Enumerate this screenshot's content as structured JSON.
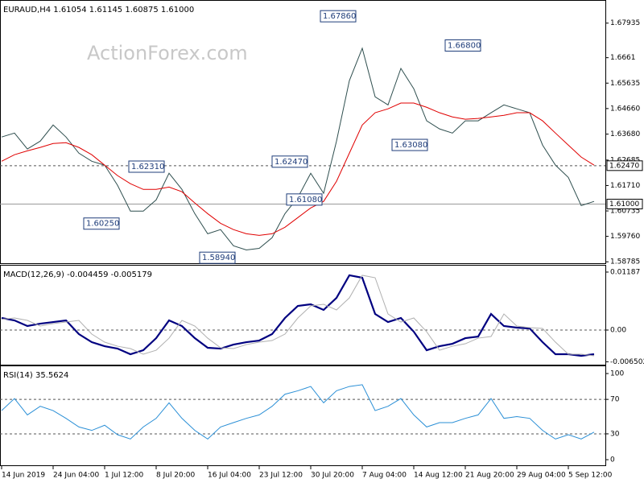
{
  "chart_data": [
    {
      "type": "line",
      "title": "EURAUD,H4  1.61054 1.61145 1.60875 1.61000",
      "watermark": "ActionForex.com",
      "categories": [
        "14 Jun 2019",
        null,
        null,
        null,
        "24 Jun 04:00",
        null,
        null,
        null,
        "1 Jul 12:00",
        null,
        null,
        null,
        "8 Jul 20:00",
        null,
        null,
        null,
        "16 Jul 04:00",
        null,
        null,
        null,
        "23 Jul 12:00",
        null,
        null,
        null,
        "30 Jul 20:00",
        null,
        null,
        null,
        "7 Aug 04:00",
        null,
        null,
        null,
        "14 Aug 12:00",
        null,
        null,
        null,
        "21 Aug 20:00",
        null,
        null,
        null,
        "29 Aug 04:00",
        null,
        null,
        null,
        "5 Sep 12:00",
        null,
        null
      ],
      "series": [
        {
          "color": "#2f4f4f",
          "values": [
            1.6357,
            1.6372,
            1.6311,
            1.6341,
            1.6403,
            1.6357,
            1.6295,
            1.6264,
            1.6249,
            1.6172,
            1.6073,
            1.6073,
            1.6116,
            1.6218,
            1.6156,
            1.6063,
            1.5986,
            1.6002,
            1.594,
            1.5924,
            1.593,
            1.5971,
            1.6063,
            1.6125,
            1.6218,
            1.6141,
            1.6341,
            1.6573,
            1.6697,
            1.6511,
            1.648,
            1.662,
            1.6542,
            1.6419,
            1.6388,
            1.6372,
            1.6419,
            1.6419,
            1.645,
            1.648,
            1.6465,
            1.645,
            1.6326,
            1.6249,
            1.6202,
            1.6094,
            1.611
          ]
        },
        {
          "color": "#e00000",
          "values": [
            1.6264,
            1.6289,
            1.6304,
            1.6317,
            1.6332,
            1.6335,
            1.6317,
            1.6289,
            1.6249,
            1.6209,
            1.6178,
            1.6156,
            1.6156,
            1.6165,
            1.6147,
            1.6104,
            1.6063,
            1.6026,
            1.6002,
            1.5986,
            1.598,
            1.5986,
            1.6011,
            1.6048,
            1.6085,
            1.611,
            1.6187,
            1.6295,
            1.6403,
            1.645,
            1.6465,
            1.6487,
            1.6487,
            1.6471,
            1.645,
            1.6434,
            1.6425,
            1.6428,
            1.6434,
            1.644,
            1.645,
            1.645,
            1.6419,
            1.6372,
            1.6326,
            1.628,
            1.6249
          ]
        }
      ],
      "ylim": [
        1.5873,
        1.6876
      ],
      "yticks": [
        1.67935,
        1.6661,
        1.65635,
        {
          "value": 1.6466,
          "label": "1.64660"
        },
        {
          "value": 1.6368,
          "label": "1.63680"
        },
        1.62685,
        {
          "value": 1.6171,
          "label": "1.61710"
        },
        1.60735,
        {
          "value": 1.5976,
          "label": "1.59760"
        },
        1.58785
      ],
      "levels": [
        {
          "value": 1.6247,
          "label": "1.62470",
          "style": "dashed"
        },
        {
          "value": 1.61,
          "label": "1.61000",
          "style": "solid"
        }
      ],
      "annotations": [
        {
          "value": 1.6786,
          "label": "1.67860"
        },
        {
          "value": 1.668,
          "label": "1.66800"
        },
        {
          "value": 1.6231,
          "label": "1.62310"
        },
        {
          "value": 1.6247,
          "label": "1.62470"
        },
        {
          "value": 1.6108,
          "label": "1.61080"
        },
        {
          "value": 1.6025,
          "label": "1.60250"
        },
        {
          "value": 1.5894,
          "label": "1.58940"
        },
        {
          "value": 1.6308,
          "label": "1.63080"
        }
      ]
    },
    {
      "type": "line",
      "title": "MACD(12,26,9) -0.004459 -0.005179",
      "series": [
        {
          "color": "#000080",
          "values": [
            0.00247,
            0.00197,
            0.00082,
            0.00131,
            0.00164,
            0.00197,
            -0.00083,
            -0.00248,
            -0.00331,
            -0.0038,
            -0.00495,
            -0.00413,
            -0.00166,
            0.00197,
            0.00082,
            -0.00166,
            -0.00363,
            -0.0038,
            -0.00298,
            -0.00248,
            -0.00215,
            -0.00083,
            0.00247,
            0.00494,
            0.00527,
            0.00412,
            0.00659,
            0.01121,
            0.01071,
            0.00329,
            0.00164,
            0.00247,
            -0.00034,
            -0.00413,
            -0.00331,
            -0.00281,
            -0.00166,
            -0.00133,
            0.00329,
            0.00082,
            0.00049,
            0.00032,
            -0.00248,
            -0.00495,
            -0.00495,
            -0.00528,
            -0.00495
          ]
        },
        {
          "color": "#b0b0b0",
          "values": [
            0.0022,
            0.00247,
            0.00197,
            0.00082,
            0.00131,
            0.00164,
            0.00197,
            -0.00083,
            -0.00248,
            -0.00331,
            -0.0038,
            -0.00495,
            -0.00413,
            -0.00166,
            0.00197,
            0.00082,
            -0.00166,
            -0.00363,
            -0.0038,
            -0.00298,
            -0.00248,
            -0.00215,
            -0.00083,
            0.00247,
            0.00494,
            0.00527,
            0.00412,
            0.00659,
            0.01121,
            0.01071,
            0.00329,
            0.00164,
            0.00247,
            -0.00034,
            -0.00413,
            -0.00331,
            -0.00281,
            -0.00166,
            -0.00133,
            0.00329,
            0.00082,
            0.00049,
            0.00032,
            -0.00248,
            -0.00495,
            -0.00495,
            -0.00528
          ]
        }
      ],
      "ylim": [
        -0.00709,
        0.01302
      ],
      "yticks": [
        0.01187,
        {
          "value": 0,
          "label": "0.00"
        },
        -0.006502
      ],
      "levels": [
        {
          "value": 0,
          "style": "dashed"
        }
      ]
    },
    {
      "type": "line",
      "title": "RSI(14) 35.5624",
      "series": [
        {
          "color": "#2a8fd6",
          "values": [
            57,
            71,
            52,
            62,
            57,
            48,
            38,
            34,
            40,
            29,
            24,
            38,
            48,
            66,
            48,
            34,
            24,
            38,
            43,
            48,
            52,
            62,
            76,
            80,
            85,
            66,
            80,
            85,
            87,
            57,
            62,
            71,
            52,
            38,
            43,
            43,
            48,
            52,
            71,
            48,
            50,
            48,
            34,
            24,
            29,
            24,
            32
          ]
        }
      ],
      "ylim": [
        -6.5,
        107.5
      ],
      "yticks": [
        100,
        70,
        30,
        0
      ],
      "levels": [
        {
          "value": 70,
          "style": "dashed"
        },
        {
          "value": 30,
          "style": "dashed"
        }
      ]
    }
  ]
}
